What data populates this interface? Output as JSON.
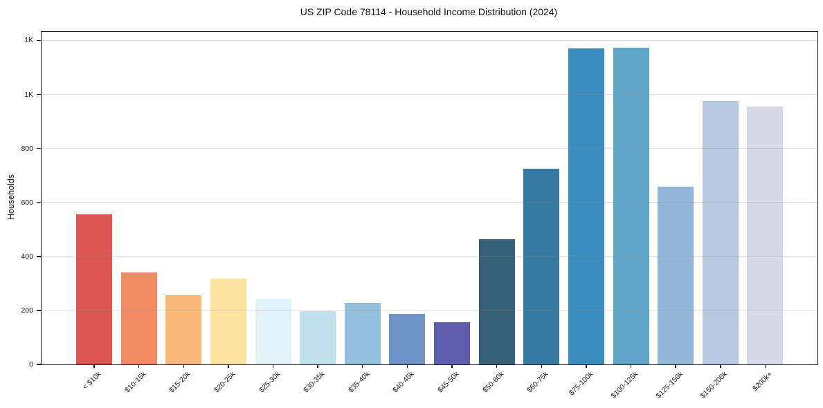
{
  "colors": {
    "background": "#ffffff",
    "text": "#1a1a1a",
    "axis": "#161616",
    "gridline": "#e3e3e3"
  },
  "chart_data": {
    "type": "bar",
    "title": "US ZIP Code 78114 - Household Income Distribution (2024)",
    "xlabel": "",
    "ylabel": "Households",
    "categories": [
      "< $10k",
      "$10-15k",
      "$15-20k",
      "$20-25k",
      "$25-30k",
      "$30-35k",
      "$35-40k",
      "$40-45k",
      "$45-50k",
      "$50-60k",
      "$60-75k",
      "$75-100k",
      "$100-125k",
      "$125-150k",
      "$150-200k",
      "$200k+"
    ],
    "values": [
      556,
      340,
      257,
      317,
      243,
      197,
      227,
      186,
      156,
      463,
      725,
      1170,
      1174,
      658,
      975,
      955
    ],
    "bar_colors": [
      "#db5852",
      "#f28a67",
      "#fab978",
      "#fde3a1",
      "#e3f1f8",
      "#c2e1ee",
      "#94bfdd",
      "#6e93c4",
      "#5d5fae",
      "#356078",
      "#3779a1",
      "#388cbe",
      "#5fa5c8",
      "#93b5d8",
      "#b9c8e1",
      "#d7d9e6"
    ],
    "ylim": [
      0,
      1232
    ],
    "yticks": [
      {
        "value": 0,
        "label": "0"
      },
      {
        "value": 200,
        "label": "200"
      },
      {
        "value": 400,
        "label": "400"
      },
      {
        "value": 600,
        "label": "600"
      },
      {
        "value": 800,
        "label": "800"
      },
      {
        "value": 1000,
        "label": "1K"
      },
      {
        "value": 1200,
        "label": "1K"
      }
    ],
    "grid": "horizontal",
    "legend": "none",
    "x_tick_rotation": 45
  }
}
